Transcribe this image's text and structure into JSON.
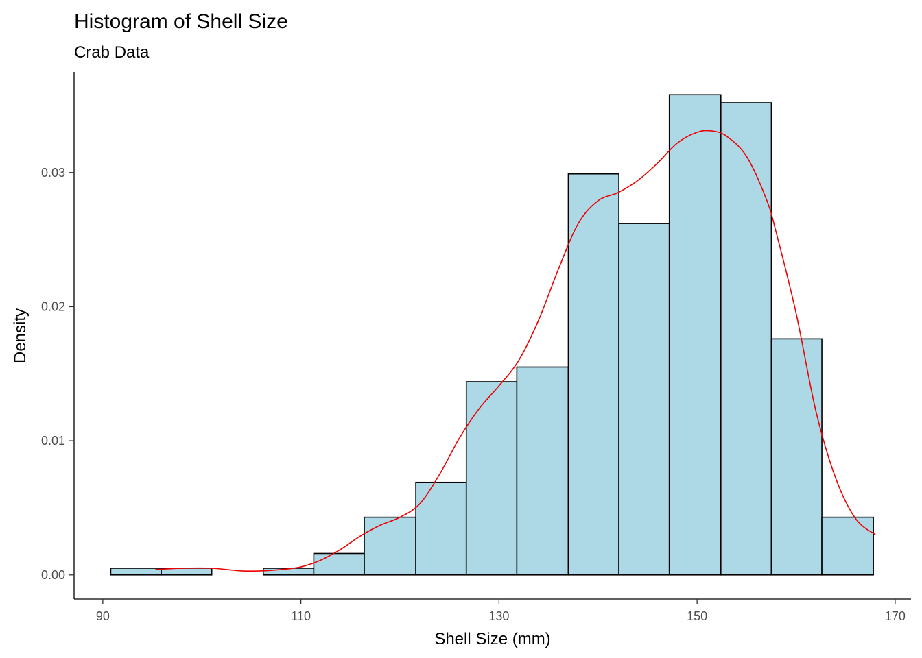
{
  "chart_data": {
    "type": "bar",
    "title": "Histogram of Shell Size",
    "subtitle": "Crab Data",
    "xlabel": "Shell Size (mm)",
    "ylabel": "Density",
    "xlim": [
      87.1,
      171.6
    ],
    "ylim": [
      -0.0018,
      0.0375
    ],
    "x_ticks": [
      90,
      110,
      130,
      150,
      170
    ],
    "y_ticks": [
      0.0,
      0.01,
      0.02,
      0.03
    ],
    "y_tick_labels": [
      "0.00",
      "0.01",
      "0.02",
      "0.03"
    ],
    "bars": [
      {
        "x0": 90.8,
        "x1": 95.9,
        "density": 0.0005
      },
      {
        "x0": 95.9,
        "x1": 101.0,
        "density": 0.0005
      },
      {
        "x0": 101.0,
        "x1": 106.2,
        "density": 0.0
      },
      {
        "x0": 106.2,
        "x1": 111.3,
        "density": 0.0005
      },
      {
        "x0": 111.3,
        "x1": 116.4,
        "density": 0.0016
      },
      {
        "x0": 116.4,
        "x1": 121.6,
        "density": 0.0043
      },
      {
        "x0": 121.6,
        "x1": 126.7,
        "density": 0.0069
      },
      {
        "x0": 126.7,
        "x1": 131.8,
        "density": 0.0144
      },
      {
        "x0": 131.8,
        "x1": 137.0,
        "density": 0.0155
      },
      {
        "x0": 137.0,
        "x1": 142.1,
        "density": 0.0299
      },
      {
        "x0": 142.1,
        "x1": 147.2,
        "density": 0.0262
      },
      {
        "x0": 147.2,
        "x1": 152.4,
        "density": 0.0358
      },
      {
        "x0": 152.4,
        "x1": 157.5,
        "density": 0.0352
      },
      {
        "x0": 157.5,
        "x1": 162.6,
        "density": 0.0176
      },
      {
        "x0": 162.6,
        "x1": 167.8,
        "density": 0.0043
      }
    ],
    "density_curve": {
      "x": [
        95.3,
        98,
        101,
        104,
        106,
        108,
        110,
        112,
        114,
        116,
        118,
        120,
        122,
        124,
        126,
        128,
        130,
        132,
        134,
        136,
        138,
        140,
        142,
        144,
        146,
        148,
        150,
        151.5,
        153,
        155,
        157,
        158,
        160,
        162,
        164,
        166,
        168
      ],
      "y": [
        0.0004,
        0.0005,
        0.0005,
        0.0003,
        0.0003,
        0.0004,
        0.0006,
        0.0011,
        0.0019,
        0.0029,
        0.0037,
        0.0043,
        0.0053,
        0.0075,
        0.0102,
        0.0124,
        0.0141,
        0.016,
        0.019,
        0.0228,
        0.0262,
        0.0279,
        0.0285,
        0.0294,
        0.0307,
        0.0322,
        0.033,
        0.0331,
        0.0327,
        0.0312,
        0.028,
        0.0255,
        0.0195,
        0.0122,
        0.0072,
        0.0042,
        0.003
      ]
    },
    "colors": {
      "bar_fill": "#add8e6",
      "bar_outline": "#000000",
      "density_line": "#ee0000"
    },
    "grid": false,
    "legend": "none"
  }
}
